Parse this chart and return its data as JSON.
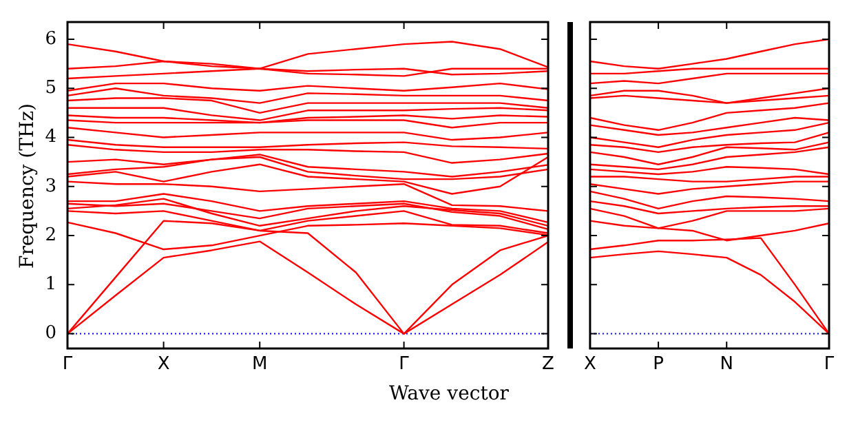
{
  "chart_data": [
    {
      "type": "line",
      "ylabel": "Frequency (THz)",
      "xlabel": "Wave vector",
      "ylim": [
        -0.3,
        6.35
      ],
      "yticks": [
        0,
        1,
        2,
        3,
        4,
        5,
        6
      ],
      "categories": [
        "Γ",
        null,
        "X",
        null,
        "M",
        null,
        null,
        "Γ",
        null,
        null,
        "Z"
      ],
      "grid": false,
      "legend": false,
      "marker": "none",
      "line_style": "solid",
      "ref_lines": [
        {
          "axis": "y",
          "value": 0,
          "color": "#0000ff",
          "line_style": "dotted"
        }
      ],
      "series": [
        {
          "color": "#ff0000",
          "values": [
            5.9,
            5.75,
            5.55,
            5.5,
            5.4,
            5.7,
            5.8,
            5.9,
            5.95,
            5.8,
            5.43
          ]
        },
        {
          "color": "#ff0000",
          "values": [
            5.4,
            5.45,
            5.55,
            5.45,
            5.4,
            5.3,
            5.28,
            5.25,
            5.4,
            5.4,
            5.4
          ]
        },
        {
          "color": "#ff0000",
          "values": [
            5.2,
            5.25,
            5.3,
            5.35,
            5.4,
            5.35,
            5.38,
            5.4,
            5.28,
            5.3,
            5.35
          ]
        },
        {
          "color": "#ff0000",
          "values": [
            4.95,
            5.1,
            5.1,
            5.0,
            4.95,
            5.05,
            5.0,
            4.95,
            5.02,
            5.1,
            4.98
          ]
        },
        {
          "color": "#ff0000",
          "values": [
            4.85,
            5.0,
            4.85,
            4.8,
            4.7,
            4.9,
            4.88,
            4.85,
            4.85,
            4.85,
            4.75
          ]
        },
        {
          "color": "#ff0000",
          "values": [
            4.75,
            4.8,
            4.8,
            4.75,
            4.5,
            4.7,
            4.7,
            4.7,
            4.7,
            4.7,
            4.6
          ]
        },
        {
          "color": "#ff0000",
          "values": [
            4.6,
            4.6,
            4.6,
            4.45,
            4.35,
            4.55,
            4.55,
            4.55,
            4.58,
            4.6,
            4.55
          ]
        },
        {
          "color": "#ff0000",
          "values": [
            4.45,
            4.4,
            4.4,
            4.35,
            4.3,
            4.4,
            4.42,
            4.45,
            4.38,
            4.45,
            4.42
          ]
        },
        {
          "color": "#ff0000",
          "values": [
            4.35,
            4.3,
            4.3,
            4.3,
            4.3,
            4.35,
            4.35,
            4.35,
            4.2,
            4.3,
            4.3
          ]
        },
        {
          "color": "#ff0000",
          "values": [
            4.2,
            4.1,
            4.0,
            4.05,
            4.1,
            4.1,
            4.1,
            4.1,
            3.95,
            4.0,
            4.1
          ]
        },
        {
          "color": "#ff0000",
          "values": [
            3.95,
            3.85,
            3.8,
            3.8,
            3.8,
            3.85,
            3.88,
            3.9,
            3.82,
            3.8,
            3.77
          ]
        },
        {
          "color": "#ff0000",
          "values": [
            3.85,
            3.75,
            3.7,
            3.7,
            3.75,
            3.75,
            3.72,
            3.7,
            3.48,
            3.55,
            3.67
          ]
        },
        {
          "color": "#ff0000",
          "values": [
            3.5,
            3.55,
            3.45,
            3.55,
            3.65,
            3.4,
            3.35,
            3.3,
            3.2,
            3.3,
            3.44
          ]
        },
        {
          "color": "#ff0000",
          "values": [
            3.25,
            3.35,
            3.4,
            3.55,
            3.6,
            3.3,
            3.22,
            3.15,
            3.15,
            3.2,
            3.35
          ]
        },
        {
          "color": "#ff0000",
          "values": [
            3.2,
            3.3,
            3.1,
            3.3,
            3.45,
            3.2,
            3.15,
            3.1,
            2.85,
            3.0,
            3.6
          ]
        },
        {
          "color": "#ff0000",
          "values": [
            3.1,
            3.05,
            3.05,
            3.0,
            2.9,
            2.95,
            3.0,
            3.05,
            2.62,
            2.6,
            2.5
          ]
        },
        {
          "color": "#ff0000",
          "values": [
            2.7,
            2.7,
            2.85,
            2.7,
            2.5,
            2.6,
            2.65,
            2.7,
            2.55,
            2.5,
            2.27
          ]
        },
        {
          "color": "#ff0000",
          "values": [
            2.65,
            2.6,
            2.65,
            2.5,
            2.35,
            2.55,
            2.6,
            2.65,
            2.48,
            2.4,
            2.13
          ]
        },
        {
          "color": "#ff0000",
          "values": [
            2.55,
            2.62,
            2.75,
            2.45,
            2.2,
            2.35,
            2.5,
            2.6,
            2.52,
            2.45,
            2.2
          ]
        },
        {
          "color": "#ff0000",
          "values": [
            2.5,
            2.45,
            2.5,
            2.3,
            2.1,
            2.3,
            2.4,
            2.5,
            2.22,
            2.2,
            2.05
          ]
        },
        {
          "color": "#ff0000",
          "values": [
            2.27,
            2.05,
            1.72,
            1.8,
            2.0,
            2.2,
            2.22,
            2.25,
            2.2,
            2.15,
            2.01
          ]
        },
        {
          "color": "#ff0000",
          "values": [
            0,
            1.15,
            2.3,
            2.25,
            2.1,
            2.05,
            1.25,
            0,
            1.0,
            1.7,
            2.0
          ]
        },
        {
          "color": "#ff0000",
          "values": [
            0,
            0.78,
            1.55,
            1.7,
            1.88,
            1.25,
            0.6,
            0,
            0.6,
            1.2,
            1.87
          ]
        }
      ]
    },
    {
      "type": "line",
      "ylim": [
        -0.3,
        6.35
      ],
      "yticks": [
        0,
        1,
        2,
        3,
        4,
        5,
        6
      ],
      "tick_labels": "x",
      "categories": [
        "X",
        null,
        "P",
        null,
        "N",
        null,
        null,
        "Γ"
      ],
      "grid": false,
      "legend": false,
      "marker": "none",
      "line_style": "solid",
      "ref_lines": [
        {
          "axis": "y",
          "value": 0,
          "color": "#0000ff",
          "line_style": "dotted"
        }
      ],
      "series": [
        {
          "color": "#ff0000",
          "values": [
            5.55,
            5.45,
            5.4,
            5.5,
            5.6,
            5.75,
            5.9,
            6.0
          ]
        },
        {
          "color": "#ff0000",
          "values": [
            5.3,
            5.3,
            5.35,
            5.4,
            5.4,
            5.4,
            5.4,
            5.4
          ]
        },
        {
          "color": "#ff0000",
          "values": [
            5.1,
            5.15,
            5.1,
            5.2,
            5.3,
            5.3,
            5.3,
            5.3
          ]
        },
        {
          "color": "#ff0000",
          "values": [
            4.85,
            4.95,
            4.95,
            4.85,
            4.7,
            4.8,
            4.9,
            5.0
          ]
        },
        {
          "color": "#ff0000",
          "values": [
            4.8,
            4.85,
            4.8,
            4.75,
            4.7,
            4.75,
            4.8,
            4.85
          ]
        },
        {
          "color": "#ff0000",
          "values": [
            4.4,
            4.25,
            4.15,
            4.3,
            4.5,
            4.55,
            4.6,
            4.7
          ]
        },
        {
          "color": "#ff0000",
          "values": [
            4.25,
            4.15,
            4.05,
            4.1,
            4.2,
            4.3,
            4.4,
            4.35
          ]
        },
        {
          "color": "#ff0000",
          "values": [
            4.0,
            3.9,
            3.8,
            3.95,
            4.05,
            4.1,
            4.15,
            4.3
          ]
        },
        {
          "color": "#ff0000",
          "values": [
            3.85,
            3.8,
            3.7,
            3.8,
            3.85,
            3.88,
            3.9,
            4.1
          ]
        },
        {
          "color": "#ff0000",
          "values": [
            3.7,
            3.6,
            3.45,
            3.6,
            3.8,
            3.78,
            3.75,
            3.9
          ]
        },
        {
          "color": "#ff0000",
          "values": [
            3.45,
            3.4,
            3.35,
            3.45,
            3.6,
            3.65,
            3.7,
            3.8
          ]
        },
        {
          "color": "#ff0000",
          "values": [
            3.35,
            3.3,
            3.25,
            3.3,
            3.4,
            3.38,
            3.35,
            3.25
          ]
        },
        {
          "color": "#ff0000",
          "values": [
            3.2,
            3.2,
            3.15,
            3.1,
            3.1,
            3.15,
            3.2,
            3.2
          ]
        },
        {
          "color": "#ff0000",
          "values": [
            3.05,
            2.95,
            2.85,
            2.95,
            3.0,
            3.05,
            3.1,
            3.1
          ]
        },
        {
          "color": "#ff0000",
          "values": [
            2.9,
            2.75,
            2.55,
            2.7,
            2.8,
            2.78,
            2.75,
            2.7
          ]
        },
        {
          "color": "#ff0000",
          "values": [
            2.7,
            2.6,
            2.45,
            2.5,
            2.55,
            2.58,
            2.6,
            2.6
          ]
        },
        {
          "color": "#ff0000",
          "values": [
            2.55,
            2.4,
            2.15,
            2.3,
            2.5,
            2.5,
            2.5,
            2.55
          ]
        },
        {
          "color": "#ff0000",
          "values": [
            2.3,
            2.2,
            2.15,
            2.1,
            1.9,
            2.0,
            2.1,
            2.25
          ]
        },
        {
          "color": "#ff0000",
          "values": [
            1.72,
            1.8,
            1.9,
            1.9,
            1.92,
            1.95,
            1.0,
            0
          ]
        },
        {
          "color": "#ff0000",
          "values": [
            1.55,
            1.62,
            1.68,
            1.62,
            1.55,
            1.2,
            0.65,
            0
          ]
        }
      ]
    }
  ]
}
